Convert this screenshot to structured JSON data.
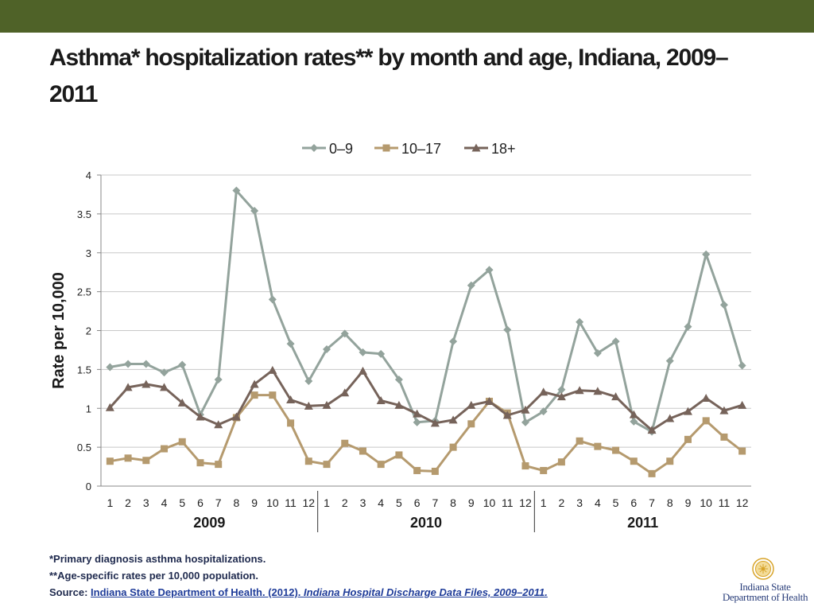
{
  "slide": {
    "title": "Asthma* hospitalization rates** by month and age, Indiana, 2009–2011"
  },
  "footnotes": {
    "note1": "*Primary diagnosis asthma hospitalizations.",
    "note2": "**Age-specific rates per 10,000 population.",
    "source_prefix": "Source: ",
    "source_link_plain": "Indiana State Department of Health. (2012). ",
    "source_link_italic": "Indiana Hospital Discharge Data Files, 2009–2011."
  },
  "logo": {
    "line1": "Indiana State",
    "line2": "Department of Health",
    "seal_color": "#d8a42a",
    "text_color": "#2a3e7a"
  },
  "chart_data": {
    "type": "line",
    "title": "",
    "xlabel": "",
    "ylabel": "Rate per 10,000",
    "ylim": [
      0,
      4
    ],
    "yticks": [
      "0",
      "0.5",
      "1",
      "1.5",
      "2",
      "2.5",
      "3",
      "3.5",
      "4"
    ],
    "grid": true,
    "legend": "top-center",
    "categories": [
      "1",
      "2",
      "3",
      "4",
      "5",
      "6",
      "7",
      "8",
      "9",
      "10",
      "11",
      "12",
      "1",
      "2",
      "3",
      "4",
      "5",
      "6",
      "7",
      "8",
      "9",
      "10",
      "11",
      "12",
      "1",
      "2",
      "3",
      "4",
      "5",
      "6",
      "7",
      "8",
      "9",
      "10",
      "11",
      "12"
    ],
    "year_groups": [
      {
        "label": "2009",
        "start": 0,
        "end": 11
      },
      {
        "label": "2010",
        "start": 12,
        "end": 23
      },
      {
        "label": "2011",
        "start": 24,
        "end": 35
      }
    ],
    "series": [
      {
        "name": "0–9",
        "color": "#93a39c",
        "marker": "diamond",
        "values": [
          1.53,
          1.57,
          1.57,
          1.46,
          1.56,
          0.92,
          1.37,
          3.8,
          3.54,
          2.4,
          1.83,
          1.35,
          1.76,
          1.96,
          1.72,
          1.7,
          1.37,
          0.82,
          0.84,
          1.86,
          2.58,
          2.78,
          2.01,
          0.82,
          0.96,
          1.24,
          2.11,
          1.71,
          1.86,
          0.83,
          0.7,
          1.61,
          2.05,
          2.98,
          2.33,
          1.55
        ]
      },
      {
        "name": "10–17",
        "color": "#b59a6e",
        "marker": "square",
        "values": [
          0.32,
          0.36,
          0.33,
          0.48,
          0.57,
          0.3,
          0.28,
          0.88,
          1.17,
          1.17,
          0.81,
          0.32,
          0.28,
          0.55,
          0.45,
          0.28,
          0.4,
          0.2,
          0.19,
          0.5,
          0.8,
          1.09,
          0.94,
          0.26,
          0.2,
          0.31,
          0.58,
          0.51,
          0.46,
          0.32,
          0.16,
          0.32,
          0.6,
          0.84,
          0.63,
          0.45
        ]
      },
      {
        "name": "18+",
        "color": "#76635a",
        "marker": "triangle",
        "values": [
          1.01,
          1.27,
          1.31,
          1.27,
          1.07,
          0.89,
          0.79,
          0.89,
          1.31,
          1.49,
          1.11,
          1.03,
          1.04,
          1.2,
          1.48,
          1.1,
          1.04,
          0.93,
          0.81,
          0.85,
          1.04,
          1.09,
          0.91,
          0.98,
          1.21,
          1.15,
          1.23,
          1.22,
          1.15,
          0.92,
          0.72,
          0.87,
          0.96,
          1.13,
          0.97,
          1.04
        ]
      }
    ]
  }
}
